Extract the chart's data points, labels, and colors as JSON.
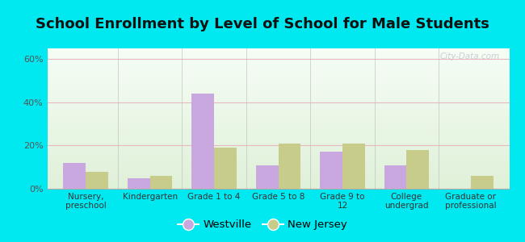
{
  "title": "School Enrollment by Level of School for Male Students",
  "categories": [
    "Nursery,\npreschool",
    "Kindergarten",
    "Grade 1 to 4",
    "Grade 5 to 8",
    "Grade 9 to\n12",
    "College\nundergrad",
    "Graduate or\nprofessional"
  ],
  "westville": [
    12,
    5,
    44,
    11,
    17,
    11,
    0
  ],
  "new_jersey": [
    8,
    6,
    19,
    21,
    21,
    18,
    6
  ],
  "westville_color": "#c9a8e0",
  "nj_color": "#c8cc8a",
  "ylim": [
    0,
    65
  ],
  "yticks": [
    0,
    20,
    40,
    60
  ],
  "ytick_labels": [
    "0%",
    "20%",
    "40%",
    "60%"
  ],
  "background_outer": "#00e8f0",
  "background_plot_top": "#f5fdf5",
  "background_plot_bottom": "#dff0d8",
  "title_fontsize": 13,
  "legend_labels": [
    "Westville",
    "New Jersey"
  ],
  "bar_width": 0.35,
  "grid_color": "#e8b8c0",
  "separator_color": "#bbbbbb"
}
